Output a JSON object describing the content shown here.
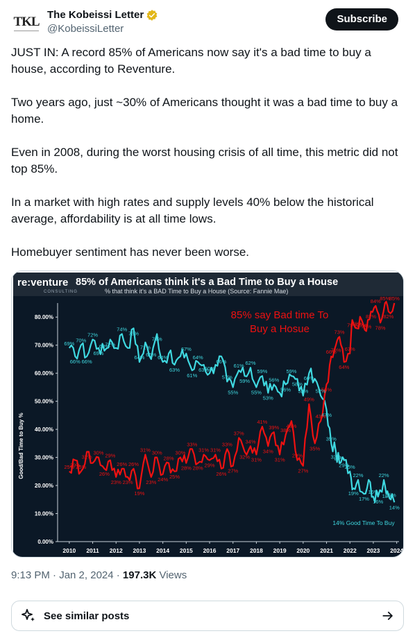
{
  "author": {
    "avatar_text": "TKL",
    "display_name": "The Kobeissi Letter",
    "handle": "@KobeissiLetter",
    "verified_icon": "verified-badge-icon",
    "verified_color": "#e2b719"
  },
  "subscribe_label": "Subscribe",
  "tweet": {
    "paragraphs": [
      "JUST IN: A record 85% of Americans now say it's a bad time to buy a house, according to Reventure.",
      "Two years ago, just ~30% of Americans thought it was a bad time to buy a home.",
      "Even in 2008, during the worst housing crisis of all time, this metric did not top 85%.",
      "In a market with high rates and supply levels 40% below the historical average, affordability is at all time lows.",
      "Homebuyer sentiment has never been worse."
    ]
  },
  "chart_image": {
    "logo_main": "re:venture",
    "logo_sub": "CONSULTING",
    "title": "85% of Americans think it's a Bad Time to Buy a House",
    "subtitle": "% that think it's a BAD Time to Buy a House (Source: Fannie Mae)",
    "ylabel": "Good/Bad Time to Buy %",
    "annotation_bad": [
      "85% say Bad time To",
      "Buy a Hosue"
    ],
    "annotation_good": "14% Good Time To Buy",
    "colors": {
      "bad": "#ee1111",
      "good": "#3fd8e0",
      "background": "#0b1826",
      "header": "#1f2a36"
    }
  },
  "chart_data": {
    "type": "line",
    "ylim": [
      0,
      85
    ],
    "xlim": [
      2009.5,
      2024.1
    ],
    "ytick_labels": [
      "0.00%",
      "10.00%",
      "20.00%",
      "30.00%",
      "40.00%",
      "50.00%",
      "60.00%",
      "70.00%",
      "80.00%"
    ],
    "ytick_values": [
      0,
      10,
      20,
      30,
      40,
      50,
      60,
      70,
      80
    ],
    "xtick_labels": [
      "2010",
      "2011",
      "2012",
      "2013",
      "2014",
      "2015",
      "2016",
      "2017",
      "2018",
      "2019",
      "2020",
      "2021",
      "2022",
      "2023",
      "2024"
    ],
    "xtick_values": [
      2010,
      2011,
      2012,
      2013,
      2014,
      2015,
      2016,
      2017,
      2018,
      2019,
      2020,
      2021,
      2022,
      2023,
      2024
    ],
    "series": [
      {
        "color": "#3fd8e0",
        "points": [
          [
            2010.0,
            69
          ],
          [
            2010.25,
            66
          ],
          [
            2010.5,
            70
          ],
          [
            2010.75,
            66
          ],
          [
            2011.0,
            72
          ],
          [
            2011.25,
            69
          ],
          [
            2011.5,
            68
          ],
          [
            2011.75,
            72
          ],
          [
            2012.0,
            69
          ],
          [
            2012.25,
            74
          ],
          [
            2012.5,
            69
          ],
          [
            2012.75,
            76
          ],
          [
            2013.0,
            64
          ],
          [
            2013.25,
            71
          ],
          [
            2013.5,
            65
          ],
          [
            2013.75,
            74
          ],
          [
            2014.0,
            64
          ],
          [
            2014.25,
            67
          ],
          [
            2014.5,
            63
          ],
          [
            2014.75,
            66
          ],
          [
            2015.0,
            67
          ],
          [
            2015.25,
            61
          ],
          [
            2015.5,
            64
          ],
          [
            2015.75,
            63
          ],
          [
            2016.0,
            60
          ],
          [
            2016.25,
            63
          ],
          [
            2016.5,
            66
          ],
          [
            2016.75,
            57
          ],
          [
            2017.0,
            55
          ],
          [
            2017.25,
            61
          ],
          [
            2017.5,
            59
          ],
          [
            2017.75,
            62
          ],
          [
            2018.0,
            55
          ],
          [
            2018.25,
            59
          ],
          [
            2018.5,
            53
          ],
          [
            2018.75,
            56
          ],
          [
            2019.0,
            53
          ],
          [
            2019.25,
            56
          ],
          [
            2019.5,
            59
          ],
          [
            2019.75,
            58
          ],
          [
            2020.0,
            52
          ],
          [
            2020.25,
            60
          ],
          [
            2020.5,
            58
          ],
          [
            2020.75,
            52
          ],
          [
            2021.0,
            47
          ],
          [
            2021.2,
            35
          ],
          [
            2021.4,
            32
          ],
          [
            2021.55,
            28
          ],
          [
            2021.75,
            29
          ],
          [
            2022.0,
            25
          ],
          [
            2022.15,
            19
          ],
          [
            2022.35,
            22
          ],
          [
            2022.6,
            17
          ],
          [
            2022.8,
            22
          ],
          [
            2023.0,
            16
          ],
          [
            2023.2,
            16
          ],
          [
            2023.45,
            22
          ],
          [
            2023.6,
            18
          ],
          [
            2023.75,
            15
          ],
          [
            2023.9,
            14
          ]
        ],
        "labels": [
          [
            2010.0,
            69,
            "69%"
          ],
          [
            2010.25,
            66,
            "66%"
          ],
          [
            2010.5,
            70,
            "70%"
          ],
          [
            2010.75,
            66,
            "66%"
          ],
          [
            2011.0,
            72,
            "72%"
          ],
          [
            2011.25,
            69,
            "69%"
          ],
          [
            2011.5,
            68,
            "68%"
          ],
          [
            2011.75,
            72,
            "72%"
          ],
          [
            2012.25,
            74,
            "74%"
          ],
          [
            2012.75,
            76,
            "76%"
          ],
          [
            2013.0,
            64,
            "64%"
          ],
          [
            2013.25,
            71,
            "71%"
          ],
          [
            2013.5,
            65,
            "65%"
          ],
          [
            2013.75,
            74,
            "74%"
          ],
          [
            2014.0,
            64,
            "64%"
          ],
          [
            2014.5,
            63,
            "63%"
          ],
          [
            2015.0,
            67,
            "67%"
          ],
          [
            2015.25,
            61,
            "61%"
          ],
          [
            2015.5,
            64,
            "64%"
          ],
          [
            2015.75,
            63,
            "63%"
          ],
          [
            2016.0,
            60,
            "60%"
          ],
          [
            2016.5,
            66,
            "66%"
          ],
          [
            2016.75,
            57,
            "57%"
          ],
          [
            2017.0,
            55,
            "55%"
          ],
          [
            2017.25,
            61,
            "61%"
          ],
          [
            2017.5,
            59,
            "59%"
          ],
          [
            2017.75,
            62,
            "62%"
          ],
          [
            2018.0,
            55,
            "55%"
          ],
          [
            2018.25,
            59,
            "59%"
          ],
          [
            2018.5,
            53,
            "53%"
          ],
          [
            2018.75,
            56,
            "56%"
          ],
          [
            2019.25,
            56,
            "56%"
          ],
          [
            2019.5,
            59,
            "59%"
          ],
          [
            2019.75,
            58,
            "58%"
          ],
          [
            2020.0,
            52,
            "52%"
          ],
          [
            2020.25,
            60,
            "60%"
          ],
          [
            2020.75,
            52,
            "52%"
          ],
          [
            2021.0,
            47,
            "47%"
          ],
          [
            2021.2,
            35,
            "35%"
          ],
          [
            2021.4,
            32,
            "32%"
          ],
          [
            2021.55,
            28,
            "28%"
          ],
          [
            2021.75,
            29,
            "29%"
          ],
          [
            2022.0,
            25,
            "25%"
          ],
          [
            2022.15,
            19,
            "19%"
          ],
          [
            2022.35,
            22,
            "22%"
          ],
          [
            2022.6,
            17,
            "17%"
          ],
          [
            2023.0,
            16,
            "16%"
          ],
          [
            2023.2,
            16,
            "16%"
          ],
          [
            2023.45,
            22,
            "22%"
          ],
          [
            2023.6,
            18,
            "18%"
          ],
          [
            2023.75,
            15,
            "15%"
          ],
          [
            2023.9,
            14,
            "14%"
          ]
        ]
      },
      {
        "color": "#ee1111",
        "points": [
          [
            2010.0,
            25
          ],
          [
            2010.25,
            29
          ],
          [
            2010.5,
            25
          ],
          [
            2010.75,
            32
          ],
          [
            2011.0,
            28
          ],
          [
            2011.25,
            30
          ],
          [
            2011.5,
            26
          ],
          [
            2011.75,
            29
          ],
          [
            2012.0,
            23
          ],
          [
            2012.25,
            26
          ],
          [
            2012.5,
            23
          ],
          [
            2012.75,
            26
          ],
          [
            2013.0,
            19
          ],
          [
            2013.25,
            31
          ],
          [
            2013.5,
            23
          ],
          [
            2013.75,
            30
          ],
          [
            2014.0,
            24
          ],
          [
            2014.25,
            28
          ],
          [
            2014.5,
            25
          ],
          [
            2014.75,
            30
          ],
          [
            2015.0,
            28
          ],
          [
            2015.25,
            33
          ],
          [
            2015.5,
            28
          ],
          [
            2015.75,
            31
          ],
          [
            2016.0,
            29
          ],
          [
            2016.25,
            31
          ],
          [
            2016.5,
            26
          ],
          [
            2016.75,
            33
          ],
          [
            2017.0,
            27
          ],
          [
            2017.25,
            37
          ],
          [
            2017.5,
            32
          ],
          [
            2017.75,
            34
          ],
          [
            2018.0,
            31
          ],
          [
            2018.25,
            41
          ],
          [
            2018.5,
            34
          ],
          [
            2018.75,
            39
          ],
          [
            2019.0,
            31
          ],
          [
            2019.25,
            38
          ],
          [
            2019.5,
            43
          ],
          [
            2019.75,
            29
          ],
          [
            2020.0,
            27
          ],
          [
            2020.25,
            49
          ],
          [
            2020.5,
            35
          ],
          [
            2020.75,
            43
          ],
          [
            2021.0,
            56
          ],
          [
            2021.2,
            66
          ],
          [
            2021.4,
            70
          ],
          [
            2021.55,
            73
          ],
          [
            2021.75,
            64
          ],
          [
            2022.0,
            67
          ],
          [
            2022.1,
            79
          ],
          [
            2022.3,
            76
          ],
          [
            2022.5,
            79
          ],
          [
            2022.7,
            75
          ],
          [
            2022.9,
            82
          ],
          [
            2023.1,
            84
          ],
          [
            2023.3,
            78
          ],
          [
            2023.5,
            85
          ],
          [
            2023.65,
            82
          ],
          [
            2023.9,
            85
          ]
        ],
        "labels": [
          [
            2010.0,
            25,
            "25%"
          ],
          [
            2010.25,
            29,
            "29%"
          ],
          [
            2010.5,
            25,
            "25%"
          ],
          [
            2010.75,
            32,
            "32%"
          ],
          [
            2011.25,
            30,
            "30%"
          ],
          [
            2011.5,
            26,
            "26%"
          ],
          [
            2011.75,
            29,
            "29%"
          ],
          [
            2012.0,
            23,
            "23%"
          ],
          [
            2012.25,
            26,
            "26%"
          ],
          [
            2012.5,
            23,
            "23%"
          ],
          [
            2012.75,
            26,
            "26%"
          ],
          [
            2013.0,
            19,
            "19%"
          ],
          [
            2013.25,
            31,
            "31%"
          ],
          [
            2013.5,
            23,
            "23%"
          ],
          [
            2013.75,
            30,
            "30%"
          ],
          [
            2014.0,
            24,
            "24%"
          ],
          [
            2014.25,
            28,
            "28%"
          ],
          [
            2014.5,
            25,
            "25%"
          ],
          [
            2014.75,
            30,
            "30%"
          ],
          [
            2015.0,
            28,
            "28%"
          ],
          [
            2015.25,
            33,
            "33%"
          ],
          [
            2015.5,
            28,
            "28%"
          ],
          [
            2015.75,
            31,
            "31%"
          ],
          [
            2016.0,
            29,
            "29%"
          ],
          [
            2016.25,
            31,
            "31%"
          ],
          [
            2016.5,
            26,
            "26%"
          ],
          [
            2016.75,
            33,
            "33%"
          ],
          [
            2017.0,
            27,
            "27%"
          ],
          [
            2017.25,
            37,
            "37%"
          ],
          [
            2017.5,
            32,
            "32%"
          ],
          [
            2017.75,
            34,
            "34%"
          ],
          [
            2018.0,
            31,
            "31%"
          ],
          [
            2018.25,
            41,
            "41%"
          ],
          [
            2018.5,
            34,
            "34%"
          ],
          [
            2018.75,
            39,
            "39%"
          ],
          [
            2019.0,
            31,
            "31%"
          ],
          [
            2019.25,
            38,
            "38%"
          ],
          [
            2019.5,
            43,
            "43%"
          ],
          [
            2019.75,
            29,
            "29%"
          ],
          [
            2020.0,
            27,
            "27%"
          ],
          [
            2020.25,
            49,
            "49%"
          ],
          [
            2020.5,
            35,
            "35%"
          ],
          [
            2020.75,
            43,
            "43%"
          ],
          [
            2021.0,
            56,
            "56%"
          ],
          [
            2021.2,
            66,
            "66%"
          ],
          [
            2021.4,
            70,
            "70%"
          ],
          [
            2021.55,
            73,
            "73%"
          ],
          [
            2021.75,
            64,
            "64%"
          ],
          [
            2022.0,
            67,
            "67%"
          ],
          [
            2022.1,
            79,
            "79%"
          ],
          [
            2022.3,
            76,
            "76%"
          ],
          [
            2022.5,
            79,
            "79%"
          ],
          [
            2022.7,
            75,
            "75%"
          ],
          [
            2022.9,
            82,
            "82%"
          ],
          [
            2023.1,
            84,
            "84%"
          ],
          [
            2023.3,
            78,
            "78%"
          ],
          [
            2023.5,
            85,
            "85%"
          ],
          [
            2023.65,
            82,
            "82%"
          ],
          [
            2023.9,
            85,
            "85%"
          ]
        ]
      }
    ]
  },
  "meta": {
    "time": "9:13 PM · Jan 2, 2024 · ",
    "views_count": "197.3K",
    "views_label": " Views"
  },
  "similar": {
    "label": "See similar posts",
    "sparkle_icon": "sparkle-icon",
    "arrow_icon": "arrow-right-icon"
  }
}
